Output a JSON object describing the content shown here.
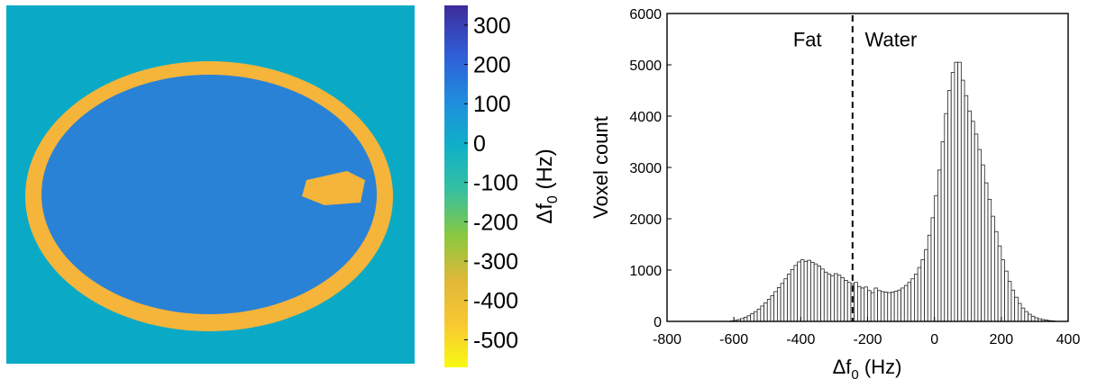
{
  "colorbar": {
    "label": "Δf",
    "label_sub": "0",
    "label_unit": " (Hz)",
    "ticks": [
      300,
      200,
      100,
      0,
      -100,
      -200,
      -300,
      -400,
      -500
    ],
    "range": [
      350,
      -570
    ],
    "colors": [
      "#3e2c9a",
      "#2f5fd8",
      "#1f8fdc",
      "#0fb0c8",
      "#35c0a0",
      "#8cc83e",
      "#e0b838",
      "#f8c832",
      "#f8f812"
    ]
  },
  "fieldmap": {
    "background_color": "#0aaac7",
    "tissue_color": "#2a82d6",
    "fat_color": "#f5b43a"
  },
  "chart_data": {
    "type": "bar",
    "xlabel": "Δf",
    "xlabel_sub": "0",
    "xlabel_unit": " (Hz)",
    "ylabel": "Voxel count",
    "xlim": [
      -800,
      400
    ],
    "ylim": [
      0,
      6000
    ],
    "xticks": [
      -800,
      -600,
      -400,
      -200,
      0,
      200,
      400
    ],
    "yticks": [
      0,
      1000,
      2000,
      3000,
      4000,
      5000,
      6000
    ],
    "annotations": [
      {
        "text": "Fat",
        "x": -380,
        "y": 5500
      },
      {
        "text": "Water",
        "x": -130,
        "y": 5500
      }
    ],
    "divider_x": -245,
    "bin_width": 10,
    "bin_start": -620,
    "values": [
      0,
      10,
      20,
      35,
      55,
      80,
      110,
      150,
      190,
      240,
      300,
      360,
      430,
      500,
      580,
      660,
      740,
      830,
      920,
      1010,
      1090,
      1160,
      1200,
      1170,
      1190,
      1150,
      1120,
      1080,
      1020,
      960,
      920,
      890,
      930,
      900,
      850,
      800,
      760,
      730,
      760,
      680,
      650,
      670,
      600,
      560,
      650,
      600,
      580,
      570,
      560,
      570,
      590,
      610,
      650,
      700,
      760,
      830,
      920,
      1050,
      1200,
      1400,
      1680,
      2020,
      2450,
      2950,
      3500,
      4050,
      4500,
      4850,
      5050,
      5050,
      4700,
      4400,
      4100,
      3900,
      3650,
      3350,
      3050,
      2700,
      2380,
      2050,
      1750,
      1470,
      1200,
      980,
      780,
      610,
      470,
      350,
      260,
      190,
      140,
      100,
      70,
      50,
      35,
      25,
      15,
      10
    ]
  }
}
